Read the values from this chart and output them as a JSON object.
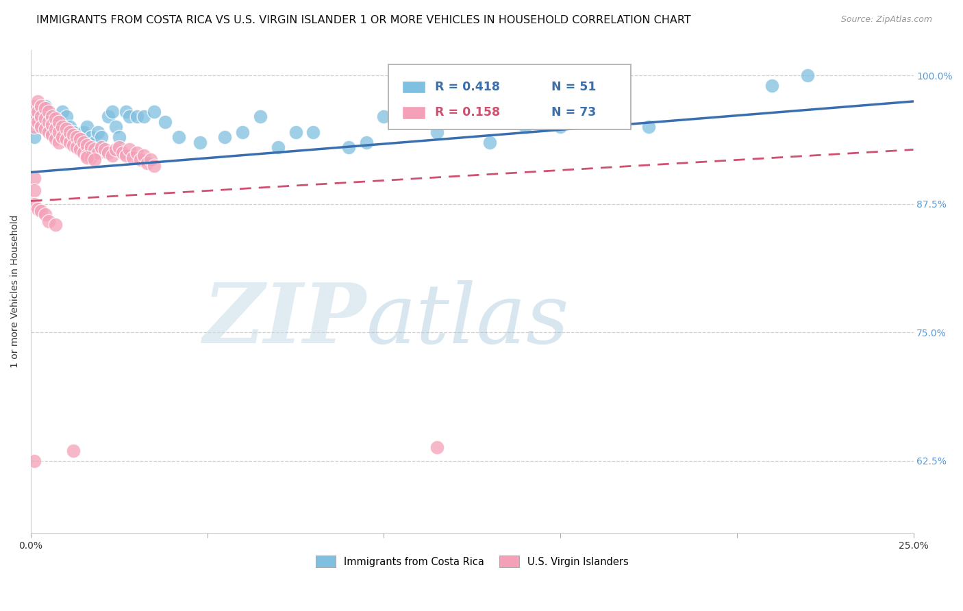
{
  "title": "IMMIGRANTS FROM COSTA RICA VS U.S. VIRGIN ISLANDER 1 OR MORE VEHICLES IN HOUSEHOLD CORRELATION CHART",
  "source": "Source: ZipAtlas.com",
  "ylabel": "1 or more Vehicles in Household",
  "legend_blue_label": "Immigrants from Costa Rica",
  "legend_pink_label": "U.S. Virgin Islanders",
  "legend_r_blue": "R = 0.418",
  "legend_n_blue": "N = 51",
  "legend_r_pink": "R = 0.158",
  "legend_n_pink": "N = 73",
  "xmin": 0.0,
  "xmax": 0.25,
  "ymin": 0.555,
  "ymax": 1.025,
  "yticks": [
    0.625,
    0.75,
    0.875,
    1.0
  ],
  "ytick_labels": [
    "62.5%",
    "75.0%",
    "87.5%",
    "100.0%"
  ],
  "xticks": [
    0.0,
    0.05,
    0.1,
    0.15,
    0.2,
    0.25
  ],
  "xtick_labels": [
    "0.0%",
    "",
    "",
    "",
    "",
    "25.0%"
  ],
  "blue_color": "#7fbfdf",
  "pink_color": "#f4a0b8",
  "blue_line_color": "#3a6faf",
  "pink_line_color": "#d05070",
  "grid_color": "#d0d0d0",
  "axis_label_color": "#5b9bd5",
  "title_fontsize": 11.5,
  "label_fontsize": 10,
  "tick_fontsize": 10,
  "watermark_zip": "ZIP",
  "watermark_atlas": "atlas",
  "blue_line_x0": 0.0,
  "blue_line_y0": 0.906,
  "blue_line_x1": 0.25,
  "blue_line_y1": 0.975,
  "pink_line_x0": 0.0,
  "pink_line_y0": 0.878,
  "pink_line_x1": 0.25,
  "pink_line_y1": 0.928,
  "blue_scatter_x": [
    0.001,
    0.002,
    0.003,
    0.004,
    0.005,
    0.006,
    0.007,
    0.008,
    0.009,
    0.01,
    0.011,
    0.012,
    0.013,
    0.014,
    0.015,
    0.016,
    0.017,
    0.018,
    0.019,
    0.02,
    0.022,
    0.023,
    0.024,
    0.025,
    0.027,
    0.028,
    0.03,
    0.032,
    0.035,
    0.038,
    0.042,
    0.048,
    0.055,
    0.06,
    0.065,
    0.07,
    0.075,
    0.08,
    0.09,
    0.095,
    0.1,
    0.11,
    0.115,
    0.12,
    0.13,
    0.14,
    0.15,
    0.16,
    0.175,
    0.21,
    0.22
  ],
  "blue_scatter_y": [
    0.94,
    0.96,
    0.95,
    0.97,
    0.96,
    0.945,
    0.955,
    0.95,
    0.965,
    0.96,
    0.95,
    0.945,
    0.935,
    0.94,
    0.945,
    0.95,
    0.94,
    0.935,
    0.945,
    0.94,
    0.96,
    0.965,
    0.95,
    0.94,
    0.965,
    0.96,
    0.96,
    0.96,
    0.965,
    0.955,
    0.94,
    0.935,
    0.94,
    0.945,
    0.96,
    0.93,
    0.945,
    0.945,
    0.93,
    0.935,
    0.96,
    0.96,
    0.945,
    0.96,
    0.935,
    0.95,
    0.95,
    0.96,
    0.95,
    0.99,
    1.0
  ],
  "pink_scatter_x": [
    0.001,
    0.001,
    0.001,
    0.002,
    0.002,
    0.002,
    0.003,
    0.003,
    0.003,
    0.004,
    0.004,
    0.004,
    0.005,
    0.005,
    0.005,
    0.006,
    0.006,
    0.006,
    0.007,
    0.007,
    0.007,
    0.008,
    0.008,
    0.008,
    0.009,
    0.009,
    0.01,
    0.01,
    0.011,
    0.011,
    0.012,
    0.012,
    0.013,
    0.013,
    0.014,
    0.014,
    0.015,
    0.015,
    0.016,
    0.016,
    0.017,
    0.017,
    0.018,
    0.019,
    0.02,
    0.021,
    0.022,
    0.023,
    0.024,
    0.025,
    0.026,
    0.027,
    0.028,
    0.029,
    0.03,
    0.031,
    0.032,
    0.033,
    0.034,
    0.035,
    0.001,
    0.001,
    0.001,
    0.002,
    0.003,
    0.004,
    0.005,
    0.007,
    0.016,
    0.018,
    0.001,
    0.012,
    0.115
  ],
  "pink_scatter_y": [
    0.97,
    0.96,
    0.95,
    0.975,
    0.965,
    0.955,
    0.97,
    0.96,
    0.95,
    0.968,
    0.958,
    0.948,
    0.965,
    0.955,
    0.945,
    0.96,
    0.952,
    0.942,
    0.958,
    0.948,
    0.938,
    0.955,
    0.945,
    0.935,
    0.95,
    0.94,
    0.948,
    0.938,
    0.945,
    0.935,
    0.942,
    0.932,
    0.94,
    0.93,
    0.938,
    0.928,
    0.935,
    0.925,
    0.932,
    0.922,
    0.93,
    0.92,
    0.928,
    0.925,
    0.93,
    0.928,
    0.925,
    0.922,
    0.928,
    0.93,
    0.925,
    0.922,
    0.928,
    0.92,
    0.925,
    0.918,
    0.922,
    0.915,
    0.918,
    0.912,
    0.9,
    0.888,
    0.875,
    0.87,
    0.868,
    0.865,
    0.858,
    0.855,
    0.92,
    0.918,
    0.625,
    0.635,
    0.638
  ]
}
